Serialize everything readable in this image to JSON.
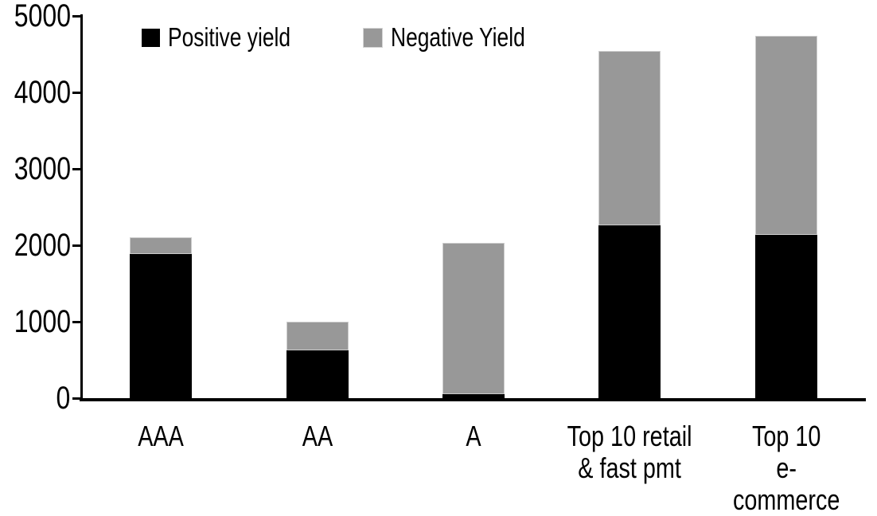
{
  "chart_data": {
    "type": "bar",
    "stacked": true,
    "title": "",
    "xlabel": "",
    "ylabel": "",
    "categories": [
      "AAA",
      "AA",
      "A",
      "Top 10 retail\n& fast pmt",
      "Top 10\ne-commerce"
    ],
    "series": [
      {
        "name": "Positive yield",
        "color": "#000000",
        "values": [
          1890,
          630,
          50,
          2260,
          2140
        ]
      },
      {
        "name": "Negative Yield",
        "color": "#989898",
        "values": [
          210,
          370,
          1980,
          2280,
          2600
        ]
      }
    ],
    "totals": [
      2100,
      1000,
      2030,
      4540,
      4740
    ],
    "ylim": [
      0,
      5000
    ],
    "yticks": [
      0,
      1000,
      2000,
      3000,
      4000,
      5000
    ],
    "grid": false,
    "legend_position": "top"
  },
  "legend": {
    "items": [
      {
        "label": "Positive yield",
        "color": "#000000"
      },
      {
        "label": "Negative Yield",
        "color": "#989898"
      }
    ]
  },
  "colors": {
    "positive_series": "#000000",
    "negative_series": "#989898",
    "axis": "#000000",
    "background": "#ffffff"
  }
}
